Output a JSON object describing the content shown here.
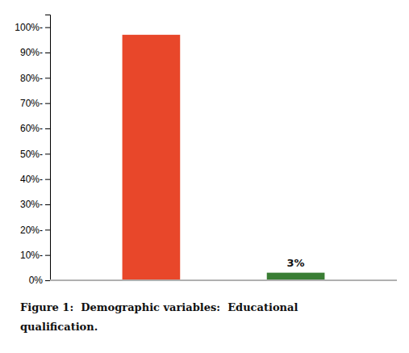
{
  "chart_data": {
    "type": "bar",
    "categories": [
      null,
      null
    ],
    "values": [
      97,
      3
    ],
    "value_labels": [
      null,
      "3%"
    ],
    "data_labels": true,
    "colors": [
      "#e8472a",
      "#3a7d34"
    ],
    "ylim": [
      0,
      105
    ],
    "yticks": [
      {
        "value": 0,
        "label": "0%"
      },
      {
        "value": 10,
        "label": "10%-"
      },
      {
        "value": 20,
        "label": "20%-"
      },
      {
        "value": 30,
        "label": "30%-"
      },
      {
        "value": 40,
        "label": "40%-"
      },
      {
        "value": 50,
        "label": "50%-"
      },
      {
        "value": 60,
        "label": "60%-"
      },
      {
        "value": 70,
        "label": "70%-"
      },
      {
        "value": 80,
        "label": "80%-"
      },
      {
        "value": 90,
        "label": "90%-"
      },
      {
        "value": 100,
        "label": "100%-"
      }
    ],
    "tick_labels": "y",
    "grid": false,
    "caption": [
      "Figure 1:  Demographic variables:  Educational",
      "qualification."
    ]
  }
}
